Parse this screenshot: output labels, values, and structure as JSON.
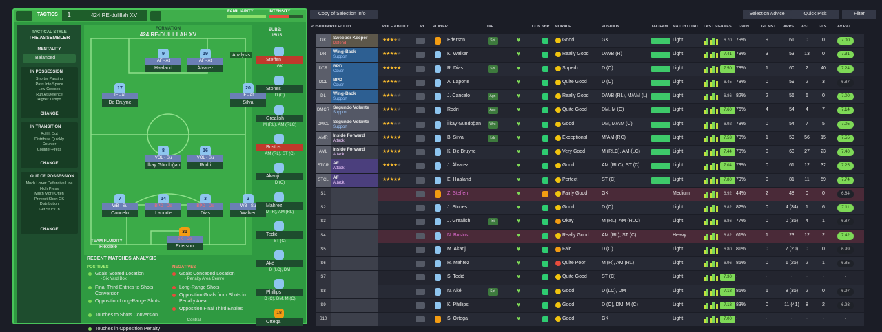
{
  "header": {
    "tactics_label": "TACTICS",
    "slot": "1",
    "tactic_name": "424 RE-dulillah XV",
    "familiarity": "FAMILIARITY",
    "intensity": "INTENSITY"
  },
  "sidebar": {
    "style_label": "TACTICAL STYLE",
    "style": "THE ASSEMBLER",
    "mentality_label": "MENTALITY",
    "mentality": "Balanced",
    "phases": [
      {
        "title": "IN POSSESSION",
        "items": [
          "Shorter Passing",
          "Pass Into Space",
          "Low Crosses",
          "Run At Defence",
          "Higher Tempo"
        ],
        "button": "CHANGE"
      },
      {
        "title": "IN TRANSITION",
        "items": [
          "Roll It Out",
          "Distribute Quickly",
          "Counter",
          "Counter-Press"
        ],
        "button": "CHANGE"
      },
      {
        "title": "OUT OF POSSESSION",
        "items": [
          "Much Lower Defensive Line",
          "High Press",
          "Much More Often",
          "Prevent Short GK",
          "Distribution",
          "Get Stuck In"
        ],
        "button": "CHANGE"
      }
    ]
  },
  "pitch": {
    "formation_label": "FORMATION",
    "formation": "424 RE-DULILLAH XV",
    "analysis": "Analysis",
    "fluidity_label": "TEAM FLUIDITY",
    "fluidity": "Flexible",
    "players": [
      {
        "number": "9",
        "role": "AF - At",
        "name": "Haaland"
      },
      {
        "number": "19",
        "role": "AF - At",
        "name": "Álvarez"
      },
      {
        "number": "17",
        "role": "IF - At",
        "name": "De Bruyne"
      },
      {
        "number": "20",
        "role": "IF - At",
        "name": "Silva"
      },
      {
        "number": "8",
        "role": "VOL - Su",
        "name": "İlkay Gündoğan"
      },
      {
        "number": "16",
        "role": "VOL - Su",
        "name": "Rodri"
      },
      {
        "number": "7",
        "role": "WB - Su",
        "name": "Cancelo"
      },
      {
        "number": "14",
        "role": "BPD - De",
        "name": "Laporte"
      },
      {
        "number": "3",
        "role": "BPD - De",
        "name": "Dias"
      },
      {
        "number": "2",
        "role": "WB - Su",
        "name": "Walker"
      },
      {
        "number": "31",
        "role": "SK - De",
        "name": "Ederson"
      }
    ]
  },
  "subs": {
    "label": "SUBS:",
    "count": "15/15",
    "players": [
      {
        "name": "Steffen",
        "position": "GK"
      },
      {
        "name": "Stones",
        "position": "D (C)"
      },
      {
        "name": "Grealish",
        "position": "M (RL), AM (RLC)"
      },
      {
        "name": "Bustos",
        "position": "AM (RL), ST (C)"
      },
      {
        "name": "Akanji",
        "position": "D (C)"
      },
      {
        "name": "Mahrez",
        "position": "M (R), AM (RL)"
      },
      {
        "name": "Tedić",
        "position": "ST (C)"
      },
      {
        "name": "Aké",
        "position": "D (LC), DM"
      },
      {
        "name": "Phillips",
        "position": "D (C), DM, M (C)"
      },
      {
        "name": "Ortega",
        "number": "18"
      }
    ]
  },
  "analysis": {
    "title": "RECENT MATCHES ANALYSIS",
    "positives_label": "POSITIVES",
    "negatives_label": "NEGATIVES",
    "positives": [
      {
        "text": "Goals Scored Location",
        "detail": "- Six Yard Box"
      },
      {
        "text": "Final Third Entries to Shots Conversion"
      },
      {
        "text": "Opposition Long-Range Shots"
      },
      {
        "text": "Touches to Shots Conversion"
      },
      {
        "text": "Touches in Opposition Penalty"
      }
    ],
    "negatives": [
      {
        "text": "Goals Conceded Location",
        "detail": "- Penalty Area Centre"
      },
      {
        "text": "Long-Range Shots"
      },
      {
        "text": "Opposition Goals from Shots in Penalty Area"
      },
      {
        "text": "Opposition Final Third Entries",
        "detail": "- Central"
      }
    ]
  },
  "toolbar": {
    "view": "Copy of Selection Info",
    "advice": "Selection Advice",
    "quick_pick": "Quick Pick",
    "filter": "Filter"
  },
  "table": {
    "columns": [
      "POSITION/ROLE/DUTY",
      "ROLE ABILITY",
      "PI",
      "PLAYER",
      "INF",
      "CON",
      "SHP",
      "MORALE",
      "POSITION",
      "TAC FAM",
      "MATCH LOAD",
      "LAST 5 GAMES",
      "GWIN",
      "GL MST",
      "APPS",
      "AST",
      "GLS",
      "AV RAT"
    ],
    "rows": [
      {
        "pos": "GK",
        "role": "Sweeper Keeper",
        "duty": "Defend",
        "stars": 3.5,
        "player": "Ederson",
        "inf": "Spt",
        "morale": "Good",
        "position": "GK",
        "load": "Light",
        "form": "6.70",
        "gwin": "79%",
        "glmst": "9",
        "apps": "61",
        "ast": "0",
        "gls": "0",
        "avrat": "7.00"
      },
      {
        "pos": "DR",
        "role": "Wing-Back",
        "duty": "Support",
        "stars": 4,
        "player": "K. Walker",
        "morale": "Really Good",
        "position": "D/WB (R)",
        "load": "Light",
        "form": "7.41",
        "gwin": "78%",
        "glmst": "3",
        "apps": "53",
        "ast": "13",
        "gls": "0",
        "avrat": "7.31"
      },
      {
        "pos": "DCR",
        "role": "BPD",
        "duty": "Cover",
        "stars": 5,
        "player": "R. Dias",
        "inf": "Spt",
        "morale": "Superb",
        "position": "D (C)",
        "load": "Light",
        "form": "7.50",
        "gwin": "78%",
        "glmst": "1",
        "apps": "60",
        "ast": "2",
        "gls": "40",
        "avrat": "7.24"
      },
      {
        "pos": "DCL",
        "role": "BPD",
        "duty": "Cover",
        "stars": 4,
        "player": "A. Laporte",
        "morale": "Quite Good",
        "position": "D (C)",
        "load": "Light",
        "form": "6.45",
        "gwin": "78%",
        "glmst": "0",
        "apps": "59",
        "ast": "2",
        "gls": "3",
        "avrat": "6.87"
      },
      {
        "pos": "DL",
        "role": "Wing-Back",
        "duty": "Support",
        "stars": 3,
        "player": "J. Cancelo",
        "inf": "Agn",
        "morale": "Really Good",
        "position": "D/WB (RL), M/AM (L)",
        "load": "Light",
        "form": "6.86",
        "gwin": "82%",
        "glmst": "2",
        "apps": "56",
        "ast": "6",
        "gls": "0",
        "avrat": "7.00"
      },
      {
        "pos": "DMCR",
        "role": "Segundo Volante",
        "duty": "Support",
        "stars": 3.5,
        "player": "Rodri",
        "inf": "Agn",
        "morale": "Quite Good",
        "position": "DM, M (C)",
        "load": "Light",
        "form": "7.60",
        "gwin": "76%",
        "glmst": "4",
        "apps": "54",
        "ast": "4",
        "gls": "7",
        "avrat": "7.14"
      },
      {
        "pos": "DMCL",
        "role": "Segundo Volante",
        "duty": "Support",
        "stars": 3,
        "player": "İlkay Gündoğan",
        "inf": "Wnt",
        "morale": "Good",
        "position": "DM, M/AM (C)",
        "load": "Light",
        "form": "6.92",
        "gwin": "78%",
        "glmst": "0",
        "apps": "54",
        "ast": "7",
        "gls": "5",
        "avrat": "7.05"
      },
      {
        "pos": "AMR",
        "role": "Inside Forward",
        "duty": "Attack",
        "stars": 5,
        "player": "B. Silva",
        "inf": "Ldr",
        "morale": "Exceptional",
        "position": "M/AM (RC)",
        "load": "Light",
        "form": "7.53",
        "gwin": "78%",
        "glmst": "1",
        "apps": "59",
        "ast": "56",
        "gls": "15",
        "avrat": "7.55"
      },
      {
        "pos": "AML",
        "role": "Inside Forward",
        "duty": "Attack",
        "stars": 5,
        "player": "K. De Bruyne",
        "morale": "Very Good",
        "position": "M (RLC), AM (LC)",
        "load": "Light",
        "form": "7.44",
        "gwin": "78%",
        "glmst": "0",
        "apps": "60",
        "ast": "27",
        "gls": "23",
        "avrat": "7.40"
      },
      {
        "pos": "STCR",
        "role": "AF",
        "duty": "Attack",
        "stars": 4,
        "player": "J. Álvarez",
        "morale": "Good",
        "position": "AM (RLC), ST (C)",
        "load": "Light",
        "form": "7.04",
        "gwin": "79%",
        "glmst": "0",
        "apps": "61",
        "ast": "12",
        "gls": "32",
        "avrat": "7.25"
      },
      {
        "pos": "STCL",
        "role": "AF",
        "duty": "Attack",
        "stars": 5,
        "player": "E. Haaland",
        "morale": "Perfect",
        "position": "ST (C)",
        "load": "Light",
        "form": "7.80",
        "gwin": "79%",
        "glmst": "0",
        "apps": "81",
        "ast": "11",
        "gls": "59",
        "avrat": "7.74"
      },
      {
        "pos": "S1",
        "player": "Z. Steffen",
        "morale": "Fairly Good",
        "position": "GK",
        "load": "Medium",
        "form": "6.92",
        "gwin": "44%",
        "glmst": "2",
        "apps": "48",
        "ast": "0",
        "gls": "0",
        "avrat": "6.84"
      },
      {
        "pos": "S2",
        "player": "J. Stones",
        "morale": "Good",
        "position": "D (C)",
        "load": "Light",
        "form": "6.82",
        "gwin": "82%",
        "glmst": "0",
        "apps": "4 (34)",
        "ast": "1",
        "gls": "6",
        "avrat": "7.11"
      },
      {
        "pos": "S3",
        "player": "J. Grealish",
        "inf": "Int",
        "morale": "Okay",
        "position": "M (RL), AM (RLC)",
        "load": "Light",
        "form": "6.86",
        "gwin": "77%",
        "glmst": "0",
        "apps": "0 (35)",
        "ast": "4",
        "gls": "1",
        "avrat": "6.87"
      },
      {
        "pos": "S4",
        "player": "N. Bustos",
        "morale": "Really Good",
        "position": "AM (RL), ST (C)",
        "load": "Heavy",
        "form": "6.82",
        "gwin": "61%",
        "glmst": "1",
        "apps": "23",
        "ast": "12",
        "gls": "2",
        "avrat": "7.42"
      },
      {
        "pos": "S5",
        "player": "M. Akanji",
        "morale": "Fair",
        "position": "D (C)",
        "load": "Light",
        "form": "6.80",
        "gwin": "81%",
        "glmst": "0",
        "apps": "7 (20)",
        "ast": "0",
        "gls": "0",
        "avrat": "6.99"
      },
      {
        "pos": "S6",
        "player": "R. Mahrez",
        "morale": "Quite Poor",
        "position": "M (R), AM (RL)",
        "load": "Light",
        "form": "6.96",
        "gwin": "85%",
        "glmst": "0",
        "apps": "1 (25)",
        "ast": "2",
        "gls": "1",
        "avrat": "6.85"
      },
      {
        "pos": "S7",
        "player": "S. Tedić",
        "morale": "Quite Good",
        "position": "ST (C)",
        "load": "Light",
        "form": "7.30",
        "gwin": "-",
        "glmst": "-",
        "apps": "-",
        "ast": "-",
        "gls": "-",
        "avrat": "-"
      },
      {
        "pos": "S8",
        "player": "N. Aké",
        "inf": "Spt",
        "morale": "Good",
        "position": "D (LC), DM",
        "load": "Light",
        "form": "7.18",
        "gwin": "86%",
        "glmst": "1",
        "apps": "8 (36)",
        "ast": "2",
        "gls": "0",
        "avrat": "6.97"
      },
      {
        "pos": "S9",
        "player": "K. Phillips",
        "morale": "Good",
        "position": "D (C), DM, M (C)",
        "load": "Light",
        "form": "7.18",
        "gwin": "83%",
        "glmst": "0",
        "apps": "11 (41)",
        "ast": "8",
        "gls": "2",
        "avrat": "6.93"
      },
      {
        "pos": "S10",
        "player": "S. Ortega",
        "morale": "Good",
        "position": "GK",
        "load": "Light",
        "form": "7.00",
        "gwin": "-",
        "glmst": "-",
        "apps": "-",
        "ast": "-",
        "gls": "-",
        "avrat": "-"
      }
    ]
  }
}
